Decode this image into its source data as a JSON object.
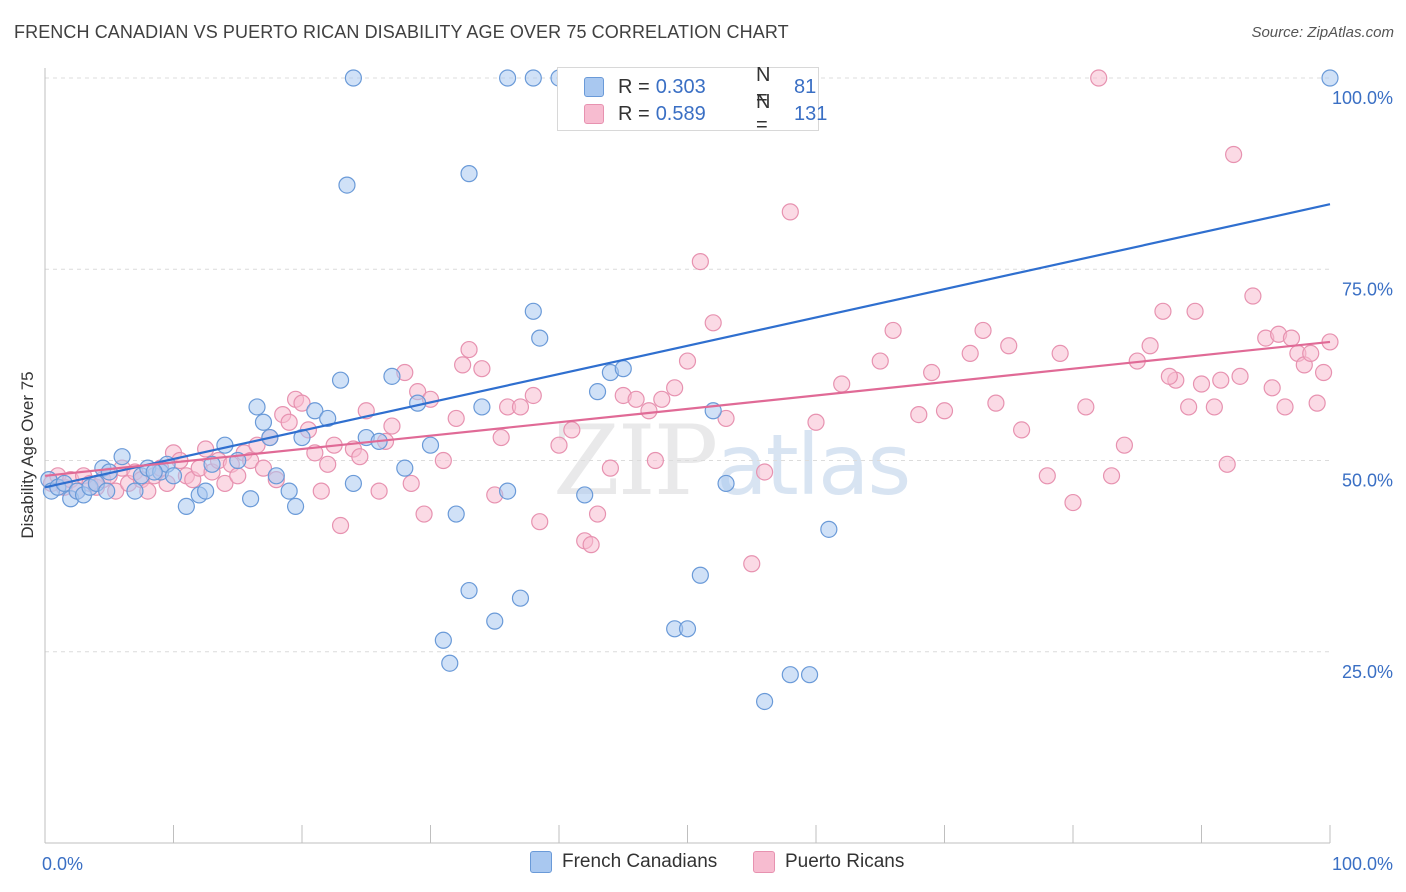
{
  "title": "FRENCH CANADIAN VS PUERTO RICAN DISABILITY AGE OVER 75 CORRELATION CHART",
  "source": "Source: ZipAtlas.com",
  "watermark": {
    "zip": "ZIP",
    "atlas": "atlas"
  },
  "legend_top": {
    "r_label": "R =",
    "n_label": "N =",
    "rows": [
      {
        "r": "0.303",
        "n": "81"
      },
      {
        "r": "0.589",
        "n": "131"
      }
    ]
  },
  "legend_bottom": [
    "French Canadians",
    "Puerto Ricans"
  ],
  "colors": {
    "blue_fill": "#a9c8f0",
    "blue_stroke": "#6a9ad8",
    "blue_line": "#2f6fcf",
    "pink_fill": "#f7bcd0",
    "pink_stroke": "#e792b0",
    "pink_line": "#e06a96",
    "tick_text": "#3a6fc4",
    "grid": "#dcdcdc"
  },
  "chart_data": {
    "type": "scatter",
    "title": "FRENCH CANADIAN VS PUERTO RICAN DISABILITY AGE OVER 75 CORRELATION CHART",
    "xlabel": "",
    "ylabel": "Disability Age Over 75",
    "xlim": [
      0,
      100
    ],
    "ylim": [
      0,
      100
    ],
    "x_tick_labels": [
      "0.0%",
      "100.0%"
    ],
    "y_ticks": [
      25,
      50,
      75,
      100
    ],
    "y_tick_labels": [
      "25.0%",
      "50.0%",
      "75.0%",
      "100.0%"
    ],
    "grid": true,
    "legend_position": "top-center",
    "series": [
      {
        "name": "French Canadians",
        "R": 0.303,
        "N": 81,
        "trend": {
          "x": [
            0,
            100
          ],
          "y": [
            46.5,
            83.5
          ]
        },
        "points": [
          [
            0.3,
            47.5
          ],
          [
            0.5,
            46
          ],
          [
            1,
            46.5
          ],
          [
            1.5,
            47
          ],
          [
            2,
            45
          ],
          [
            2.5,
            46
          ],
          [
            3,
            45.5
          ],
          [
            3.5,
            46.5
          ],
          [
            4,
            47
          ],
          [
            4.5,
            49
          ],
          [
            5,
            48.5
          ],
          [
            6,
            50.5
          ],
          [
            7,
            46
          ],
          [
            7.5,
            48
          ],
          [
            8,
            49
          ],
          [
            9,
            48.5
          ],
          [
            9.5,
            49.5
          ],
          [
            10,
            48
          ],
          [
            11,
            44
          ],
          [
            12,
            45.5
          ],
          [
            12.5,
            46
          ],
          [
            13,
            49.5
          ],
          [
            14,
            52
          ],
          [
            15,
            50
          ],
          [
            16,
            45
          ],
          [
            16.5,
            57
          ],
          [
            17,
            55
          ],
          [
            17.5,
            53
          ],
          [
            18,
            48
          ],
          [
            19,
            46
          ],
          [
            19.5,
            44
          ],
          [
            20,
            53
          ],
          [
            21,
            56.5
          ],
          [
            22,
            55.5
          ],
          [
            23,
            60.5
          ],
          [
            24,
            47
          ],
          [
            25,
            53
          ],
          [
            26,
            52.5
          ],
          [
            27,
            61
          ],
          [
            28,
            49
          ],
          [
            29,
            57.5
          ],
          [
            30,
            52
          ],
          [
            31,
            26.5
          ],
          [
            31.5,
            23.5
          ],
          [
            32,
            43
          ],
          [
            33,
            33
          ],
          [
            34,
            57
          ],
          [
            35,
            29
          ],
          [
            36,
            46
          ],
          [
            37,
            32
          ],
          [
            38,
            69.5
          ],
          [
            38.5,
            66
          ],
          [
            40,
            100
          ],
          [
            40.5,
            100
          ],
          [
            42,
            45.5
          ],
          [
            43,
            59
          ],
          [
            43.5,
            100
          ],
          [
            44,
            61.5
          ],
          [
            45,
            62
          ],
          [
            46,
            100
          ],
          [
            47,
            100
          ],
          [
            48,
            100
          ],
          [
            49,
            28
          ],
          [
            50,
            28
          ],
          [
            51,
            35
          ],
          [
            52,
            56.5
          ],
          [
            53,
            47
          ],
          [
            56,
            18.5
          ],
          [
            58,
            22
          ],
          [
            59.5,
            22
          ],
          [
            61,
            41
          ],
          [
            23.5,
            86
          ],
          [
            24,
            100
          ],
          [
            33,
            87.5
          ],
          [
            36,
            100
          ],
          [
            38,
            100
          ],
          [
            48,
            100
          ],
          [
            100,
            100
          ],
          [
            42.5,
            100
          ],
          [
            8.5,
            48.5
          ],
          [
            4.8,
            46
          ]
        ]
      },
      {
        "name": "Puerto Ricans",
        "R": 0.589,
        "N": 131,
        "trend": {
          "x": [
            0,
            100
          ],
          "y": [
            48,
            65.5
          ]
        },
        "points": [
          [
            0.5,
            47
          ],
          [
            1,
            48
          ],
          [
            1.5,
            46.5
          ],
          [
            2,
            47.5
          ],
          [
            2.5,
            46
          ],
          [
            3,
            48
          ],
          [
            3.5,
            47
          ],
          [
            4,
            46.5
          ],
          [
            4.5,
            47.5
          ],
          [
            5,
            48
          ],
          [
            5.5,
            46
          ],
          [
            6,
            49
          ],
          [
            6.5,
            47
          ],
          [
            7,
            48.5
          ],
          [
            7.5,
            47.5
          ],
          [
            8,
            46
          ],
          [
            8.5,
            48
          ],
          [
            9,
            49
          ],
          [
            9.5,
            47
          ],
          [
            10,
            51
          ],
          [
            10.5,
            50
          ],
          [
            11,
            48
          ],
          [
            11.5,
            47.5
          ],
          [
            12,
            49
          ],
          [
            12.5,
            51.5
          ],
          [
            13,
            48.5
          ],
          [
            13.5,
            50
          ],
          [
            14,
            47
          ],
          [
            14.5,
            49.5
          ],
          [
            15,
            48
          ],
          [
            15.5,
            51
          ],
          [
            16,
            50
          ],
          [
            16.5,
            52
          ],
          [
            17,
            49
          ],
          [
            17.5,
            53
          ],
          [
            18,
            47.5
          ],
          [
            18.5,
            56
          ],
          [
            19,
            55
          ],
          [
            19.5,
            58
          ],
          [
            20,
            57.5
          ],
          [
            20.5,
            54
          ],
          [
            21,
            51
          ],
          [
            21.5,
            46
          ],
          [
            22,
            49.5
          ],
          [
            22.5,
            52
          ],
          [
            23,
            41.5
          ],
          [
            24,
            51.5
          ],
          [
            24.5,
            50.5
          ],
          [
            25,
            56.5
          ],
          [
            26,
            46
          ],
          [
            26.5,
            52.5
          ],
          [
            27,
            54.5
          ],
          [
            28,
            61.5
          ],
          [
            28.5,
            47
          ],
          [
            29,
            59
          ],
          [
            29.5,
            43
          ],
          [
            30,
            58
          ],
          [
            31,
            50
          ],
          [
            32,
            55.5
          ],
          [
            32.5,
            62.5
          ],
          [
            33,
            64.5
          ],
          [
            34,
            62
          ],
          [
            35,
            45.5
          ],
          [
            35.5,
            53
          ],
          [
            36,
            57
          ],
          [
            37,
            57
          ],
          [
            38,
            58.5
          ],
          [
            38.5,
            42
          ],
          [
            40,
            52
          ],
          [
            41,
            54
          ],
          [
            42,
            39.5
          ],
          [
            42.5,
            39
          ],
          [
            43,
            43
          ],
          [
            44,
            49
          ],
          [
            45,
            58.5
          ],
          [
            46,
            58
          ],
          [
            47,
            56.5
          ],
          [
            47.5,
            50
          ],
          [
            48,
            58
          ],
          [
            49,
            59.5
          ],
          [
            50,
            63
          ],
          [
            51,
            76
          ],
          [
            52,
            68
          ],
          [
            53,
            55.5
          ],
          [
            55,
            36.5
          ],
          [
            56,
            48.5
          ],
          [
            58,
            82.5
          ],
          [
            60,
            55
          ],
          [
            62,
            60
          ],
          [
            65,
            63
          ],
          [
            66,
            67
          ],
          [
            68,
            56
          ],
          [
            69,
            61.5
          ],
          [
            70,
            56.5
          ],
          [
            72,
            64
          ],
          [
            73,
            67
          ],
          [
            75,
            65
          ],
          [
            76,
            54
          ],
          [
            78,
            48
          ],
          [
            80,
            44.5
          ],
          [
            81,
            57
          ],
          [
            82,
            100
          ],
          [
            83,
            48
          ],
          [
            84,
            52
          ],
          [
            85,
            63
          ],
          [
            86,
            65
          ],
          [
            87,
            69.5
          ],
          [
            88,
            60.5
          ],
          [
            89,
            57
          ],
          [
            89.5,
            69.5
          ],
          [
            90,
            60
          ],
          [
            91,
            57
          ],
          [
            92,
            49.5
          ],
          [
            92.5,
            90
          ],
          [
            93,
            61
          ],
          [
            94,
            71.5
          ],
          [
            95,
            66
          ],
          [
            95.5,
            59.5
          ],
          [
            96,
            66.5
          ],
          [
            97,
            66
          ],
          [
            97.5,
            64
          ],
          [
            98,
            62.5
          ],
          [
            98.5,
            64
          ],
          [
            99,
            57.5
          ],
          [
            99.5,
            61.5
          ],
          [
            100,
            65.5
          ],
          [
            96.5,
            57
          ],
          [
            91.5,
            60.5
          ],
          [
            87.5,
            61
          ],
          [
            79,
            64
          ],
          [
            74,
            57.5
          ]
        ]
      }
    ]
  }
}
